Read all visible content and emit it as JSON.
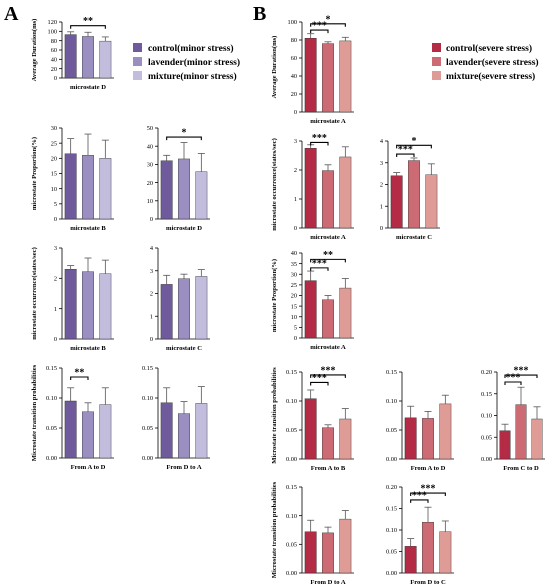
{
  "panels": {
    "a": "A",
    "b": "B"
  },
  "legends": {
    "minor": {
      "colors": [
        "#6f5b9c",
        "#9b8fc2",
        "#c3bddd"
      ],
      "items": [
        "control(minor stress)",
        "lavender(minor stress)",
        "mixture(minor stress)"
      ]
    },
    "severe": {
      "colors": [
        "#b32b44",
        "#cc6b73",
        "#df9c96"
      ],
      "items": [
        "control(severe stress)",
        "lavender(severe stress)",
        "mixture(severe stress)"
      ]
    }
  },
  "chart_data": [
    {
      "type": "bar",
      "group": "minor",
      "xlabel": "microstate D",
      "ylabel": "Average Duration(ms)",
      "ylim": [
        0,
        120
      ],
      "yticks": [
        0,
        20,
        40,
        60,
        80,
        100,
        120
      ],
      "values": [
        93,
        89,
        79
      ],
      "errors": [
        6,
        9,
        9
      ],
      "annotations": [
        {
          "from": 0,
          "to": 2,
          "label": "**",
          "y": 112
        }
      ]
    },
    {
      "type": "bar",
      "group": "minor",
      "xlabel": "microstate B",
      "ylabel": "microstate Proportion(%)",
      "ylim": [
        0,
        30
      ],
      "yticks": [
        0,
        5,
        10,
        15,
        20,
        25,
        30
      ],
      "values": [
        21.5,
        21,
        20
      ],
      "errors": [
        5,
        7,
        6
      ],
      "annotations": []
    },
    {
      "type": "bar",
      "group": "minor",
      "xlabel": "microstate D",
      "ylabel": "",
      "ylim": [
        0,
        50
      ],
      "yticks": [
        0,
        10,
        20,
        30,
        40,
        50
      ],
      "values": [
        32,
        33,
        26
      ],
      "errors": [
        3,
        9,
        10
      ],
      "annotations": [
        {
          "from": 0,
          "to": 2,
          "label": "*",
          "y": 45
        }
      ]
    },
    {
      "type": "bar",
      "group": "minor",
      "xlabel": "microstate B",
      "ylabel": "microstate occurrence(states/sec)",
      "ylim": [
        0,
        3
      ],
      "yticks": [
        0,
        1,
        2,
        3
      ],
      "values": [
        2.3,
        2.22,
        2.15
      ],
      "errors": [
        0.12,
        0.45,
        0.45
      ],
      "annotations": []
    },
    {
      "type": "bar",
      "group": "minor",
      "xlabel": "microstate C",
      "ylabel": "",
      "ylim": [
        0,
        4
      ],
      "yticks": [
        0,
        1,
        2,
        3,
        4
      ],
      "values": [
        2.4,
        2.65,
        2.75
      ],
      "errors": [
        0.4,
        0.2,
        0.3
      ],
      "annotations": []
    },
    {
      "type": "bar",
      "group": "minor",
      "xlabel": "From A to D",
      "ylabel": "Microstate transition probabilities",
      "ylim": [
        0,
        0.15
      ],
      "yticks": [
        0,
        0.05,
        0.1,
        0.15
      ],
      "tickDecimals": 2,
      "values": [
        0.095,
        0.077,
        0.089
      ],
      "errors": [
        0.022,
        0.015,
        0.028
      ],
      "annotations": [
        {
          "from": 0,
          "to": 1,
          "label": "**",
          "y": 0.135
        }
      ]
    },
    {
      "type": "bar",
      "group": "minor",
      "xlabel": "From D to A",
      "ylabel": "",
      "ylim": [
        0,
        0.15
      ],
      "yticks": [
        0,
        0.05,
        0.1,
        0.15
      ],
      "tickDecimals": 2,
      "values": [
        0.092,
        0.074,
        0.091
      ],
      "errors": [
        0.025,
        0.02,
        0.028
      ],
      "annotations": []
    },
    {
      "type": "bar",
      "group": "severe",
      "xlabel": "microstate A",
      "ylabel": "Average Duration(ms)",
      "ylim": [
        0,
        100
      ],
      "yticks": [
        0,
        20,
        40,
        60,
        80,
        100
      ],
      "values": [
        82,
        76,
        79
      ],
      "errors": [
        5,
        2,
        4
      ],
      "annotations": [
        {
          "from": 0,
          "to": 1,
          "label": "***",
          "y": 91
        },
        {
          "from": 0,
          "to": 2,
          "label": "*",
          "y": 98
        }
      ]
    },
    {
      "type": "bar",
      "group": "severe",
      "xlabel": "microstate A",
      "ylabel": "microstate occurrence(states/sec)",
      "ylim": [
        0,
        3
      ],
      "yticks": [
        0,
        1,
        2,
        3
      ],
      "values": [
        2.75,
        1.98,
        2.45
      ],
      "errors": [
        0.12,
        0.2,
        0.35
      ],
      "annotations": [
        {
          "from": 0,
          "to": 1,
          "label": "***",
          "y": 2.95
        }
      ]
    },
    {
      "type": "bar",
      "group": "severe",
      "xlabel": "microstate C",
      "ylabel": "",
      "ylim": [
        0,
        4
      ],
      "yticks": [
        0,
        1,
        2,
        3,
        4
      ],
      "values": [
        2.4,
        3.1,
        2.45
      ],
      "errors": [
        0.15,
        0.12,
        0.5
      ],
      "annotations": [
        {
          "from": 0,
          "to": 1,
          "label": "***",
          "y": 3.4
        },
        {
          "from": 0,
          "to": 2,
          "label": "*",
          "y": 3.8
        }
      ]
    },
    {
      "type": "bar",
      "group": "severe",
      "xlabel": "microstate A",
      "ylabel": "microstate Proportion(%)",
      "ylim": [
        0,
        40
      ],
      "yticks": [
        0,
        5,
        10,
        15,
        20,
        25,
        30,
        35,
        40
      ],
      "values": [
        27,
        18,
        23.5
      ],
      "errors": [
        4.5,
        2,
        4.5
      ],
      "annotations": [
        {
          "from": 0,
          "to": 1,
          "label": "***",
          "y": 33
        },
        {
          "from": 0,
          "to": 2,
          "label": "**",
          "y": 37
        }
      ]
    },
    {
      "type": "bar",
      "group": "severe",
      "xlabel": "From A to B",
      "ylabel": "Microstate transition probabilities",
      "ylim": [
        0,
        0.15
      ],
      "yticks": [
        0,
        0.05,
        0.1,
        0.15
      ],
      "tickDecimals": 2,
      "values": [
        0.104,
        0.054,
        0.069
      ],
      "errors": [
        0.015,
        0.005,
        0.018
      ],
      "annotations": [
        {
          "from": 0,
          "to": 1,
          "label": "***",
          "y": 0.132
        },
        {
          "from": 0,
          "to": 2,
          "label": "***",
          "y": 0.145
        }
      ]
    },
    {
      "type": "bar",
      "group": "severe",
      "xlabel": "From A to D",
      "ylabel": "",
      "ylim": [
        0,
        0.15
      ],
      "yticks": [
        0,
        0.05,
        0.1,
        0.15
      ],
      "tickDecimals": 2,
      "values": [
        0.071,
        0.07,
        0.095
      ],
      "errors": [
        0.02,
        0.012,
        0.015
      ],
      "annotations": []
    },
    {
      "type": "bar",
      "group": "severe",
      "xlabel": "From C to D",
      "ylabel": "",
      "ylim": [
        0,
        0.2
      ],
      "yticks": [
        0,
        0.05,
        0.1,
        0.15,
        0.2
      ],
      "tickDecimals": 2,
      "values": [
        0.065,
        0.125,
        0.092
      ],
      "errors": [
        0.015,
        0.04,
        0.028
      ],
      "annotations": [
        {
          "from": 0,
          "to": 1,
          "label": "***",
          "y": 0.177
        },
        {
          "from": 0,
          "to": 2,
          "label": "***",
          "y": 0.193
        }
      ]
    },
    {
      "type": "bar",
      "group": "severe",
      "xlabel": "From D to A",
      "ylabel": "Microstate transition probabilities",
      "ylim": [
        0,
        0.15
      ],
      "yticks": [
        0,
        0.05,
        0.1,
        0.15
      ],
      "tickDecimals": 2,
      "values": [
        0.072,
        0.07,
        0.094
      ],
      "errors": [
        0.02,
        0.01,
        0.015
      ],
      "annotations": []
    },
    {
      "type": "bar",
      "group": "severe",
      "xlabel": "From D to C",
      "ylabel": "",
      "ylim": [
        0,
        0.2
      ],
      "yticks": [
        0,
        0.05,
        0.1,
        0.15,
        0.2
      ],
      "tickDecimals": 2,
      "values": [
        0.062,
        0.118,
        0.096
      ],
      "errors": [
        0.018,
        0.035,
        0.025
      ],
      "annotations": [
        {
          "from": 0,
          "to": 1,
          "label": "***",
          "y": 0.17
        },
        {
          "from": 0,
          "to": 2,
          "label": "***",
          "y": 0.186
        }
      ]
    }
  ]
}
